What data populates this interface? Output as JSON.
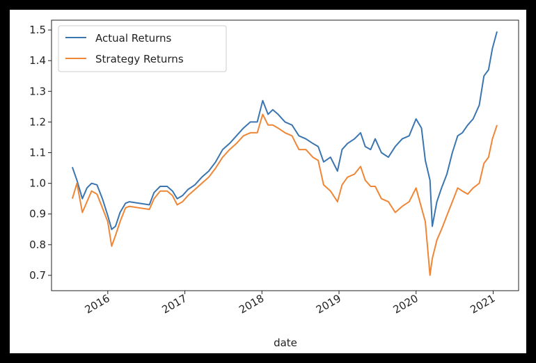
{
  "chart_data": {
    "type": "line",
    "x_label": "date",
    "x": [
      2015.54,
      2015.6,
      2015.67,
      2015.73,
      2015.79,
      2015.86,
      2015.93,
      2016.0,
      2016.05,
      2016.1,
      2016.16,
      2016.23,
      2016.28,
      2016.54,
      2016.6,
      2016.68,
      2016.77,
      2016.84,
      2016.9,
      2016.97,
      2017.04,
      2017.13,
      2017.22,
      2017.31,
      2017.4,
      2017.49,
      2017.58,
      2017.67,
      2017.76,
      2017.85,
      2017.94,
      2018.01,
      2018.08,
      2018.14,
      2018.21,
      2018.3,
      2018.39,
      2018.48,
      2018.57,
      2018.66,
      2018.73,
      2018.8,
      2018.89,
      2018.98,
      2019.04,
      2019.11,
      2019.2,
      2019.28,
      2019.34,
      2019.41,
      2019.47,
      2019.55,
      2019.64,
      2019.73,
      2019.82,
      2019.91,
      2020.0,
      2020.07,
      2020.12,
      2020.18,
      2020.21,
      2020.27,
      2020.33,
      2020.4,
      2020.47,
      2020.54,
      2020.6,
      2020.67,
      2020.74,
      2020.82,
      2020.88,
      2020.94,
      2020.99,
      2021.05
    ],
    "series": [
      {
        "name": "Actual Returns",
        "color": "#3b75af",
        "values": [
          1.053,
          1.01,
          0.95,
          0.985,
          1.0,
          0.995,
          0.95,
          0.895,
          0.85,
          0.86,
          0.905,
          0.935,
          0.94,
          0.93,
          0.97,
          0.99,
          0.99,
          0.975,
          0.95,
          0.96,
          0.98,
          0.995,
          1.02,
          1.04,
          1.07,
          1.11,
          1.13,
          1.155,
          1.18,
          1.2,
          1.2,
          1.27,
          1.225,
          1.24,
          1.225,
          1.2,
          1.19,
          1.155,
          1.145,
          1.13,
          1.12,
          1.07,
          1.085,
          1.04,
          1.11,
          1.13,
          1.145,
          1.165,
          1.12,
          1.11,
          1.145,
          1.1,
          1.085,
          1.12,
          1.145,
          1.155,
          1.21,
          1.18,
          1.075,
          1.01,
          0.86,
          0.94,
          0.985,
          1.03,
          1.1,
          1.155,
          1.165,
          1.19,
          1.21,
          1.255,
          1.35,
          1.37,
          1.44,
          1.495
        ]
      },
      {
        "name": "Strategy Returns",
        "color": "#ef8636",
        "values": [
          0.95,
          1.0,
          0.905,
          0.94,
          0.975,
          0.965,
          0.92,
          0.875,
          0.795,
          0.83,
          0.875,
          0.92,
          0.925,
          0.915,
          0.95,
          0.975,
          0.975,
          0.96,
          0.93,
          0.94,
          0.96,
          0.98,
          1.0,
          1.02,
          1.05,
          1.085,
          1.11,
          1.13,
          1.155,
          1.165,
          1.165,
          1.225,
          1.19,
          1.19,
          1.18,
          1.165,
          1.155,
          1.11,
          1.11,
          1.085,
          1.075,
          0.995,
          0.975,
          0.94,
          0.995,
          1.02,
          1.03,
          1.055,
          1.01,
          0.99,
          0.99,
          0.95,
          0.94,
          0.905,
          0.925,
          0.94,
          0.985,
          0.92,
          0.875,
          0.7,
          0.755,
          0.815,
          0.85,
          0.895,
          0.94,
          0.985,
          0.975,
          0.965,
          0.985,
          1.0,
          1.065,
          1.085,
          1.145,
          1.19
        ]
      }
    ],
    "xlim": [
      2015.27,
      2021.33
    ],
    "xticks": [
      2016,
      2017,
      2018,
      2019,
      2020,
      2021
    ],
    "ylim": [
      0.65,
      1.532
    ],
    "yticks": [
      0.7,
      0.8,
      0.9,
      {
        "value": 1,
        "label": "1.0"
      },
      1.1,
      1.2,
      1.3,
      1.4,
      1.5
    ],
    "legend": "upper left"
  }
}
